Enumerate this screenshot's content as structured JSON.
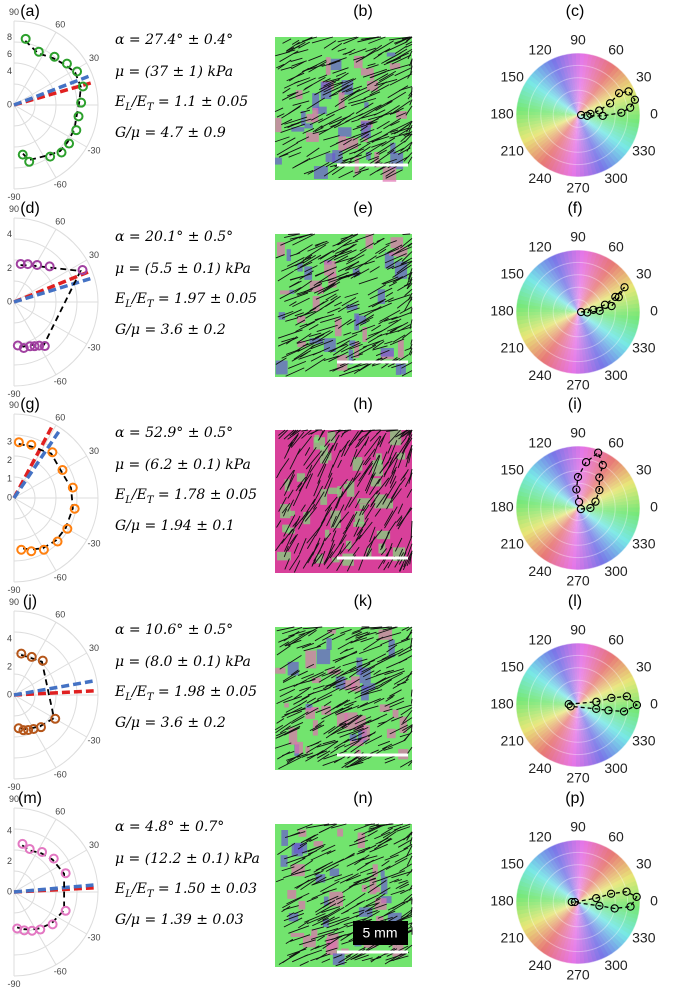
{
  "panels": [
    {
      "labels": {
        "polar": "(a)",
        "image": "(b)",
        "wheel": "(c)"
      },
      "text": {
        "alpha": "α = 27.4° ± 0.4°",
        "mu": "μ = (37 ± 1) kPa",
        "ratio": {
          "num": "E",
          "num_sub": "L",
          "den": "/E",
          "den_sub": "T",
          "value": " = 1.1 ± 0.05"
        },
        "g": "G/μ = 4.7 ± 0.9"
      },
      "polar": {
        "color": "#2ca02c",
        "rlim": [
          0,
          10
        ],
        "rticks": [
          0,
          4,
          6,
          8
        ],
        "points": [
          [
            80,
            8
          ],
          [
            65,
            7
          ],
          [
            50,
            7.5
          ],
          [
            38,
            8
          ],
          [
            28,
            8.5
          ],
          [
            15,
            8.5
          ],
          [
            2,
            8
          ],
          [
            -10,
            7.8
          ],
          [
            -22,
            8
          ],
          [
            -35,
            8
          ],
          [
            -45,
            8
          ],
          [
            -55,
            7.5
          ],
          [
            -75,
            7
          ],
          [
            -80,
            6
          ]
        ],
        "lines": [
          {
            "color": "#e02020",
            "angle": 16
          },
          {
            "color": "#4472c4",
            "angle": 21
          }
        ]
      },
      "wheel": {
        "points": [
          [
            0,
            0.05
          ],
          [
            5,
            0.2
          ],
          [
            12,
            0.35
          ],
          [
            20,
            0.55
          ],
          [
            28,
            0.75
          ],
          [
            25,
            0.9
          ],
          [
            15,
            0.95
          ],
          [
            8,
            0.85
          ],
          [
            3,
            0.7
          ],
          [
            -2,
            0.4
          ],
          [
            -5,
            0.15
          ]
        ]
      }
    },
    {
      "labels": {
        "polar": "(d)",
        "image": "(e)",
        "wheel": "(f)"
      },
      "text": {
        "alpha": "α = 20.1° ± 0.5°",
        "mu": "μ = (5.5 ± 0.1) kPa",
        "ratio": {
          "num": "E",
          "num_sub": "L",
          "den": "/E",
          "den_sub": "T",
          "value": " = 1.97 ± 0.05"
        },
        "g": "G/μ = 3.6 ± 0.2"
      },
      "polar": {
        "color": "#a040a0",
        "rlim": [
          0,
          5
        ],
        "rticks": [
          0,
          2,
          4
        ],
        "points": [
          [
            80,
            2.3
          ],
          [
            70,
            2.4
          ],
          [
            58,
            2.6
          ],
          [
            45,
            3
          ],
          [
            25,
            4.5
          ],
          [
            -55,
            3.2
          ],
          [
            -60,
            3
          ],
          [
            -65,
            2.9
          ],
          [
            -70,
            2.8
          ],
          [
            -78,
            2.8
          ],
          [
            -85,
            2.6
          ]
        ],
        "lines": [
          {
            "color": "#e02020",
            "angle": 22
          },
          {
            "color": "#4472c4",
            "angle": 17
          }
        ]
      },
      "wheel": {
        "points": [
          [
            0,
            0.05
          ],
          [
            8,
            0.25
          ],
          [
            15,
            0.45
          ],
          [
            22,
            0.65
          ],
          [
            28,
            0.85
          ],
          [
            20,
            0.7
          ],
          [
            10,
            0.55
          ],
          [
            3,
            0.35
          ],
          [
            -3,
            0.15
          ]
        ]
      }
    },
    {
      "labels": {
        "polar": "(g)",
        "image": "(h)",
        "wheel": "(i)"
      },
      "text": {
        "alpha": "α = 52.9° ± 0.5°",
        "mu": "μ = (6.2 ± 0.1) kPa",
        "ratio": {
          "num": "E",
          "num_sub": "L",
          "den": "/E",
          "den_sub": "T",
          "value": " = 1.78 ± 0.05"
        },
        "g": "G/μ = 1.94 ± 0.1"
      },
      "polar": {
        "color": "#ff7f0e",
        "rlim": [
          0,
          4.5
        ],
        "rticks": [
          0,
          1,
          2,
          3
        ],
        "points": [
          [
            85,
            3
          ],
          [
            72,
            3
          ],
          [
            50,
            3.2
          ],
          [
            30,
            3
          ],
          [
            10,
            3.2
          ],
          [
            -10,
            3.3
          ],
          [
            -30,
            3.3
          ],
          [
            -45,
            3.3
          ],
          [
            -60,
            3.2
          ],
          [
            -72,
            3
          ],
          [
            -82,
            2.8
          ]
        ],
        "lines": [
          {
            "color": "#e02020",
            "angle": 62
          },
          {
            "color": "#4472c4",
            "angle": 56
          }
        ]
      },
      "wheel": {
        "points": [
          [
            -20,
            0.05
          ],
          [
            0,
            0.2
          ],
          [
            20,
            0.3
          ],
          [
            40,
            0.45
          ],
          [
            55,
            0.6
          ],
          [
            60,
            0.8
          ],
          [
            70,
            0.95
          ],
          [
            80,
            0.75
          ],
          [
            90,
            0.5
          ],
          [
            95,
            0.3
          ],
          [
            80,
            0.1
          ]
        ]
      }
    },
    {
      "labels": {
        "polar": "(j)",
        "image": "(k)",
        "wheel": "(l)"
      },
      "text": {
        "alpha": "α = 10.6° ± 0.5°",
        "mu": "μ = (8.0 ± 0.1) kPa",
        "ratio": {
          "num": "E",
          "num_sub": "L",
          "den": "/E",
          "den_sub": "T",
          "value": " = 1.98 ± 0.05"
        },
        "g": "G/μ = 3.6 ± 0.2"
      },
      "polar": {
        "color": "#b5561a",
        "rlim": [
          0,
          6
        ],
        "rticks": [
          0,
          2,
          4
        ],
        "points": [
          [
            80,
            3
          ],
          [
            65,
            3
          ],
          [
            50,
            3.2
          ],
          [
            -30,
            3.4
          ],
          [
            -50,
            3
          ],
          [
            -60,
            2.8
          ],
          [
            -68,
            2.7
          ],
          [
            -75,
            2.6
          ],
          [
            -82,
            2.4
          ]
        ],
        "lines": [
          {
            "color": "#e02020",
            "angle": 3
          },
          {
            "color": "#4472c4",
            "angle": 10
          }
        ]
      },
      "wheel": {
        "points": [
          [
            175,
            0.15
          ],
          [
            10,
            0.3
          ],
          [
            12,
            0.55
          ],
          [
            10,
            0.8
          ],
          [
            0,
            0.95
          ],
          [
            -8,
            0.75
          ],
          [
            -10,
            0.5
          ],
          [
            -12,
            0.3
          ],
          [
            -170,
            0.12
          ]
        ]
      }
    },
    {
      "labels": {
        "polar": "(m)",
        "image": "(n)",
        "wheel": "(p)"
      },
      "text": {
        "alpha": "α = 4.8° ± 0.7°",
        "mu": "μ = (12.2 ± 0.1) kPa",
        "ratio": {
          "num": "E",
          "num_sub": "L",
          "den": "/E",
          "den_sub": "T",
          "value": " = 1.50 ± 0.03"
        },
        "g": "G/μ = 1.39 ± 0.03"
      },
      "polar": {
        "color": "#e377c2",
        "rlim": [
          0,
          5.5
        ],
        "rticks": [
          0,
          2,
          4
        ],
        "points": [
          [
            80,
            3.2
          ],
          [
            70,
            3
          ],
          [
            55,
            3.2
          ],
          [
            40,
            3.4
          ],
          [
            20,
            3.6
          ],
          [
            -20,
            3.6
          ],
          [
            -40,
            3.3
          ],
          [
            -55,
            3
          ],
          [
            -65,
            2.8
          ],
          [
            -75,
            2.6
          ],
          [
            -85,
            2.4
          ]
        ],
        "lines": [
          {
            "color": "#e02020",
            "angle": 3
          },
          {
            "color": "#4472c4",
            "angle": 5
          }
        ]
      },
      "wheel": {
        "points": [
          [
            180,
            0.05
          ],
          [
            12,
            0.3
          ],
          [
            14,
            0.55
          ],
          [
            12,
            0.8
          ],
          [
            5,
            0.95
          ],
          [
            -5,
            0.85
          ],
          [
            -10,
            0.6
          ],
          [
            -10,
            0.35
          ],
          [
            -180,
            0.1
          ]
        ]
      }
    }
  ],
  "polar_angles": [
    90,
    60,
    30,
    -30,
    -60,
    -90
  ],
  "wheel_angles": [
    90,
    60,
    30,
    0,
    330,
    300,
    270,
    240,
    210,
    180,
    150,
    120
  ],
  "scale_label": "5 mm"
}
